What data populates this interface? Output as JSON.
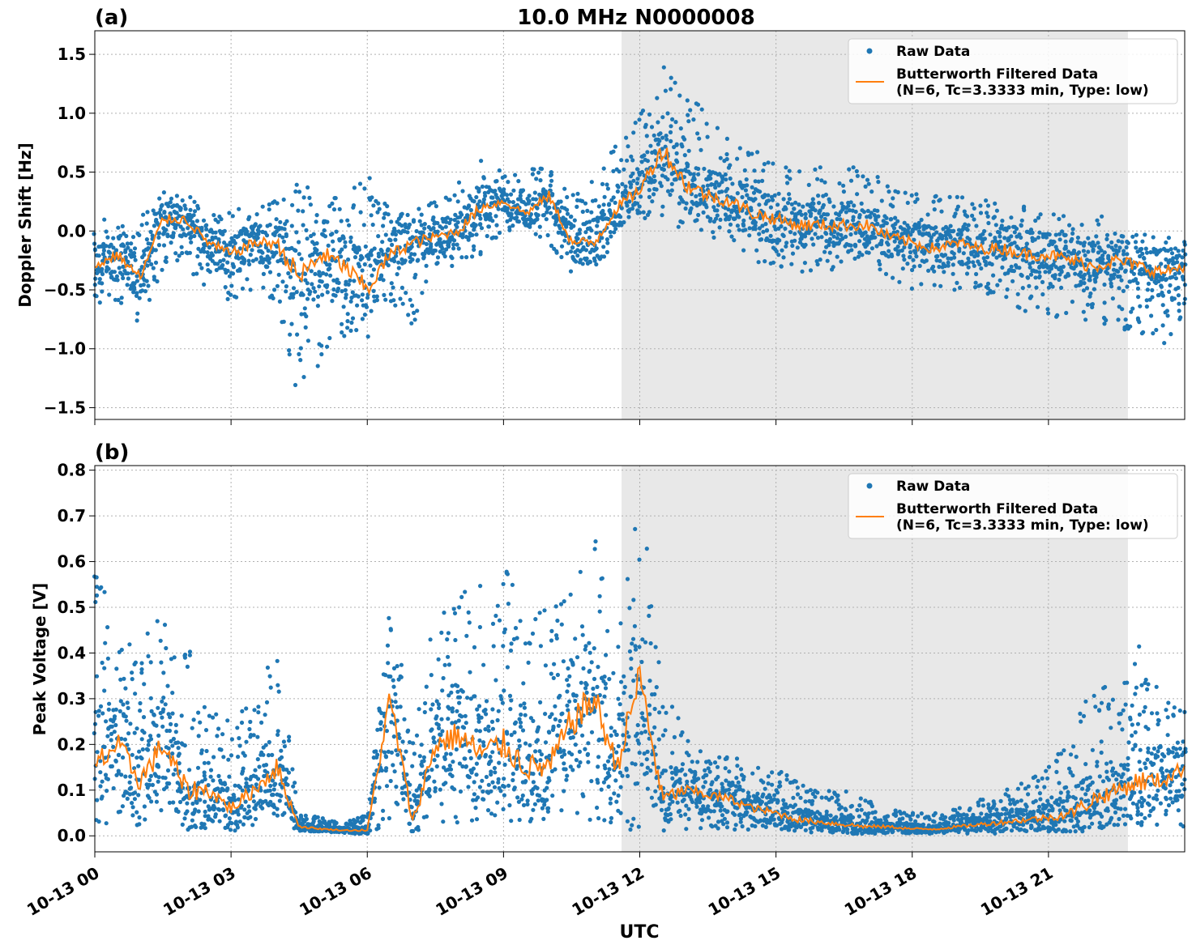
{
  "figure": {
    "title": "10.0 MHz N0000008",
    "xlabel": "UTC",
    "x_tick_labels": [
      "10-13 00",
      "10-13 03",
      "10-13 06",
      "10-13 09",
      "10-13 12",
      "10-13 15",
      "10-13 18",
      "10-13 21"
    ],
    "shaded_interval_hours": [
      11.6,
      22.75
    ],
    "x_range_hours": [
      0,
      24
    ],
    "colors": {
      "raw": "#1f77b4",
      "filtered": "#ff7f0e",
      "shade": "#e8e8e8",
      "grid": "#b0b0b0"
    }
  },
  "chart_data": [
    {
      "type": "scatter",
      "panel_label": "(a)",
      "ylabel": "Doppler Shift [Hz]",
      "ylim": [
        -1.6,
        1.7
      ],
      "y_ticks": [
        -1.5,
        -1.0,
        -0.5,
        0.0,
        0.5,
        1.0,
        1.5
      ],
      "y_tick_labels": [
        "−1.5",
        "−1.0",
        "−0.5",
        "0.0",
        "0.5",
        "1.0",
        "1.5"
      ],
      "grid": true,
      "legend_position": "top-right",
      "legend": [
        "Raw Data",
        "Butterworth Filtered Data",
        "(N=6, Tc=3.3333 min, Type: low)"
      ],
      "series": [
        {
          "name": "Raw Data",
          "kind": "points",
          "x_hours": [
            0,
            0.5,
            1,
            1.5,
            2,
            2.5,
            3,
            3.5,
            4,
            4.5,
            5,
            5.5,
            6,
            6.5,
            7,
            7.5,
            8,
            8.5,
            9,
            9.5,
            10,
            10.5,
            11,
            11.5,
            12,
            12.5,
            13,
            13.5,
            14,
            14.5,
            15,
            15.5,
            16,
            16.5,
            17,
            17.5,
            18,
            18.5,
            19,
            19.5,
            20,
            20.5,
            21,
            21.5,
            22,
            22.5,
            23,
            23.5,
            24
          ],
          "y_upper": [
            0.1,
            0.1,
            0.15,
            0.4,
            0.35,
            0.15,
            0.2,
            0.2,
            0.3,
            0.45,
            0.3,
            0.3,
            0.5,
            0.2,
            0.15,
            0.3,
            0.4,
            0.6,
            0.5,
            0.5,
            0.6,
            0.3,
            0.5,
            0.8,
            1.0,
            1.55,
            1.2,
            1.0,
            0.8,
            0.7,
            0.6,
            0.55,
            0.55,
            0.55,
            0.55,
            0.4,
            0.35,
            0.3,
            0.3,
            0.25,
            0.3,
            0.2,
            0.15,
            0.15,
            0.15,
            0.1,
            0.0,
            -0.05,
            0.0
          ],
          "y_lower": [
            -0.7,
            -0.6,
            -0.8,
            -0.3,
            -0.3,
            -0.5,
            -0.6,
            -0.5,
            -0.6,
            -1.45,
            -1.1,
            -0.9,
            -0.9,
            -0.6,
            -0.8,
            -0.3,
            -0.3,
            -0.2,
            0.0,
            0.0,
            -0.1,
            -0.4,
            -0.4,
            0.0,
            0.1,
            0.1,
            -0.05,
            -0.05,
            -0.1,
            -0.3,
            -0.3,
            -0.35,
            -0.35,
            -0.3,
            -0.3,
            -0.4,
            -0.5,
            -0.5,
            -0.5,
            -0.5,
            -0.6,
            -0.7,
            -0.7,
            -0.8,
            -0.8,
            -0.8,
            -0.9,
            -1.0,
            -0.7
          ]
        },
        {
          "name": "Butterworth Filtered Data",
          "kind": "line",
          "x_hours": [
            0,
            0.5,
            1,
            1.5,
            2,
            2.5,
            3,
            3.5,
            4,
            4.5,
            5,
            5.5,
            6,
            6.5,
            7,
            7.5,
            8,
            8.5,
            9,
            9.5,
            10,
            10.5,
            11,
            11.5,
            12,
            12.5,
            13,
            13.5,
            14,
            14.5,
            15,
            15.5,
            16,
            16.5,
            17,
            17.5,
            18,
            18.5,
            19,
            19.5,
            20,
            20.5,
            21,
            21.5,
            22,
            22.5,
            23,
            23.5,
            24
          ],
          "y": [
            -0.3,
            -0.2,
            -0.4,
            0.1,
            0.1,
            -0.1,
            -0.2,
            -0.1,
            -0.1,
            -0.4,
            -0.2,
            -0.3,
            -0.5,
            -0.2,
            -0.1,
            -0.05,
            0.0,
            0.2,
            0.25,
            0.15,
            0.3,
            -0.1,
            -0.1,
            0.2,
            0.35,
            0.7,
            0.4,
            0.3,
            0.25,
            0.15,
            0.1,
            0.05,
            0.05,
            0.05,
            0.05,
            -0.05,
            -0.1,
            -0.15,
            -0.1,
            -0.15,
            -0.15,
            -0.2,
            -0.2,
            -0.25,
            -0.3,
            -0.25,
            -0.3,
            -0.35,
            -0.3
          ]
        }
      ]
    },
    {
      "type": "scatter",
      "panel_label": "(b)",
      "ylabel": "Peak Voltage [V]",
      "ylim": [
        -0.035,
        0.81
      ],
      "y_ticks": [
        0.0,
        0.1,
        0.2,
        0.3,
        0.4,
        0.5,
        0.6,
        0.7,
        0.8
      ],
      "y_tick_labels": [
        "0.0",
        "0.1",
        "0.2",
        "0.3",
        "0.4",
        "0.5",
        "0.6",
        "0.7",
        "0.8"
      ],
      "grid": true,
      "legend_position": "top-right",
      "legend": [
        "Raw Data",
        "Butterworth Filtered Data",
        "(N=6, Tc=3.3333 min, Type: low)"
      ],
      "series": [
        {
          "name": "Raw Data",
          "kind": "points",
          "x_hours": [
            0,
            0.5,
            1,
            1.5,
            2,
            2.5,
            3,
            3.5,
            4,
            4.5,
            5,
            5.5,
            6,
            6.5,
            7,
            7.5,
            8,
            8.5,
            9,
            9.5,
            10,
            10.5,
            11,
            11.5,
            12,
            12.5,
            13,
            13.5,
            14,
            14.5,
            15,
            15.5,
            16,
            16.5,
            17,
            17.5,
            18,
            18.5,
            19,
            19.5,
            20,
            20.5,
            21,
            21.5,
            22,
            22.5,
            23,
            23.5,
            24
          ],
          "y_upper": [
            0.6,
            0.45,
            0.45,
            0.5,
            0.45,
            0.3,
            0.25,
            0.3,
            0.45,
            0.05,
            0.04,
            0.03,
            0.05,
            0.55,
            0.2,
            0.5,
            0.55,
            0.55,
            0.6,
            0.5,
            0.5,
            0.6,
            0.65,
            0.45,
            0.76,
            0.35,
            0.22,
            0.2,
            0.18,
            0.15,
            0.15,
            0.12,
            0.1,
            0.1,
            0.08,
            0.06,
            0.05,
            0.05,
            0.06,
            0.08,
            0.1,
            0.12,
            0.15,
            0.22,
            0.35,
            0.3,
            0.43,
            0.3,
            0.3
          ],
          "y_lower": [
            0.02,
            0.03,
            0.02,
            0.02,
            0.01,
            0.01,
            0.01,
            0.02,
            0.02,
            0.01,
            0.01,
            0.005,
            0.005,
            0.02,
            0.01,
            0.02,
            0.02,
            0.02,
            0.02,
            0.02,
            0.02,
            0.02,
            0.01,
            0.01,
            0.01,
            0.01,
            0.01,
            0.01,
            0.01,
            0.01,
            0.005,
            0.005,
            0.005,
            0.005,
            0.005,
            0.005,
            0.005,
            0.005,
            0.005,
            0.005,
            0.005,
            0.01,
            0.01,
            0.01,
            0.01,
            0.02,
            0.02,
            0.02,
            0.02
          ]
        },
        {
          "name": "Butterworth Filtered Data",
          "kind": "line",
          "x_hours": [
            0,
            0.5,
            1,
            1.5,
            2,
            2.5,
            3,
            3.5,
            4,
            4.5,
            5,
            5.5,
            6,
            6.5,
            7,
            7.5,
            8,
            8.5,
            9,
            9.5,
            10,
            10.5,
            11,
            11.5,
            12,
            12.5,
            13,
            13.5,
            14,
            14.5,
            15,
            15.5,
            16,
            16.5,
            17,
            17.5,
            18,
            18.5,
            19,
            19.5,
            20,
            20.5,
            21,
            21.5,
            22,
            22.5,
            23,
            23.5,
            24
          ],
          "y": [
            0.15,
            0.2,
            0.12,
            0.2,
            0.1,
            0.1,
            0.06,
            0.1,
            0.15,
            0.02,
            0.015,
            0.012,
            0.012,
            0.3,
            0.03,
            0.2,
            0.22,
            0.18,
            0.2,
            0.15,
            0.15,
            0.25,
            0.3,
            0.15,
            0.35,
            0.08,
            0.1,
            0.09,
            0.08,
            0.06,
            0.05,
            0.035,
            0.03,
            0.025,
            0.02,
            0.02,
            0.015,
            0.015,
            0.02,
            0.025,
            0.03,
            0.035,
            0.04,
            0.05,
            0.08,
            0.1,
            0.12,
            0.12,
            0.15
          ]
        }
      ]
    }
  ]
}
